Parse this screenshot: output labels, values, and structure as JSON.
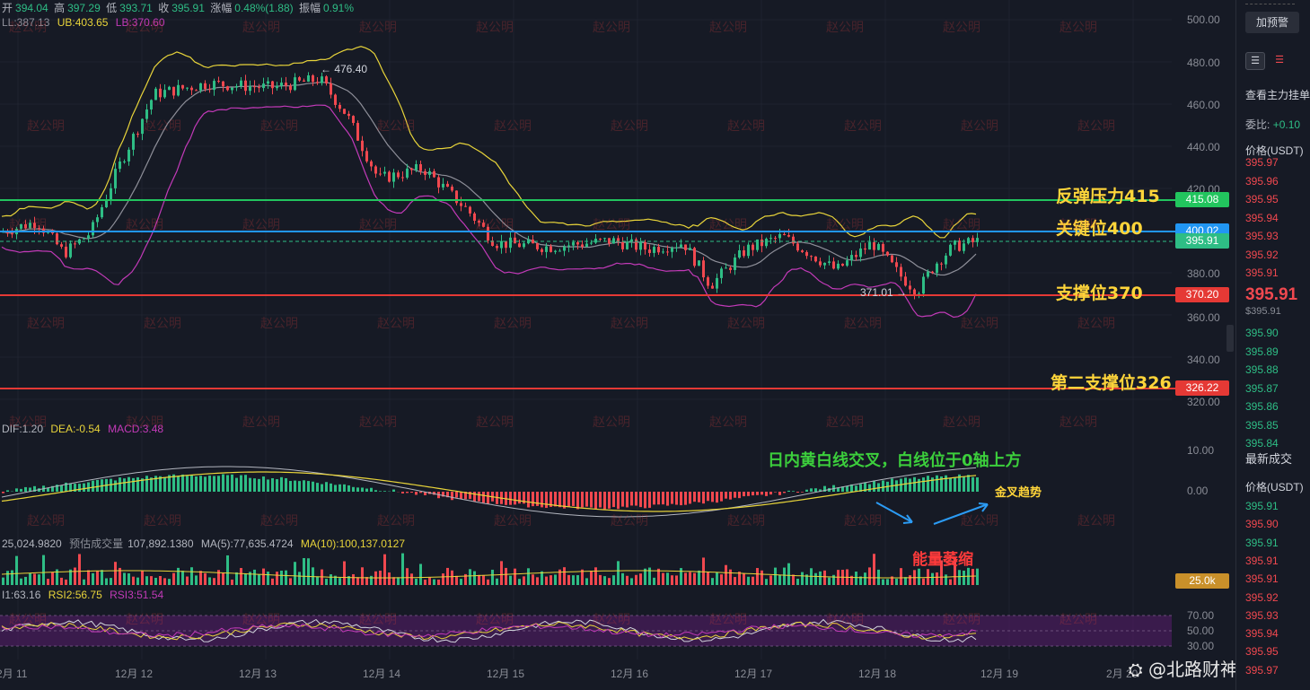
{
  "ohlc": {
    "open_label": "开",
    "open": "394.04",
    "high_label": "高",
    "high": "397.29",
    "low_label": "低",
    "low": "393.71",
    "close_label": "收",
    "close": "395.91",
    "change_label": "涨幅",
    "change": "0.48%(1.88)",
    "amplitude_label": "振幅",
    "amplitude": "0.91%"
  },
  "boll": {
    "ll": "LL:387.13",
    "ub": "UB:403.65",
    "lb": "LB:370.60"
  },
  "macd": {
    "dif": "DIF:1.20",
    "dea": "DEA:-0.54",
    "macd": "MACD:3.48"
  },
  "volume": {
    "vol": "25,024.9820",
    "predict_label": "预估成交量",
    "predict": "107,892.1380",
    "ma5": "MA(5):77,635.4724",
    "ma10": "MA(10):100,137.0127"
  },
  "rsi": {
    "rsi1": "I1:63.16",
    "rsi2": "RSI2:56.75",
    "rsi3": "RSI3:51.54"
  },
  "price_axis": [
    "500.00",
    "480.00",
    "460.00",
    "440.00",
    "420.00",
    "380.00",
    "360.00",
    "340.00",
    "320.00"
  ],
  "macd_axis": [
    "10.00",
    "0.00"
  ],
  "rsi_axis": [
    "70.00",
    "50.00",
    "30.00"
  ],
  "date_axis": [
    "2月 11",
    "12月 12",
    "12月 13",
    "12月 14",
    "12月 15",
    "12月 16",
    "12月 17",
    "12月 18",
    "12月 19",
    "2月 20"
  ],
  "price_tags": {
    "resistance": "415.08",
    "key": "400.02",
    "last": "395.91",
    "support": "370.20",
    "support2": "326.22",
    "vol": "25.0k"
  },
  "markers": {
    "high": "← 476.40",
    "low": "371.01 →"
  },
  "annotations": {
    "resistance": "反弹压力415",
    "key": "关键位400",
    "support": "支撑位370",
    "support2": "第二支撑位326",
    "macd_note": "日内黄白线交叉，白线位于0轴上方",
    "golden_cross": "金叉趋势",
    "volume_note": "能量萎缩"
  },
  "watermark_text": "赵公明",
  "footer": "@北路财神赵公明",
  "panel": {
    "alert_button": "加预警",
    "view_orders": "查看主力挂单",
    "ratio_label": "委比:",
    "ratio_value": "+0.10",
    "price_header": "价格(USDT)",
    "ask_prices": [
      "395.97",
      "395.96",
      "395.95",
      "395.94",
      "395.93",
      "395.92",
      "395.91"
    ],
    "last_price": "395.91",
    "last_price_sub": "$395.91",
    "bid_prices": [
      "395.90",
      "395.89",
      "395.88",
      "395.87",
      "395.86",
      "395.85",
      "395.84"
    ],
    "trades_title": "最新成交",
    "trades_header": "价格(USDT)",
    "trades": [
      {
        "p": "395.91",
        "s": "buy"
      },
      {
        "p": "395.90",
        "s": "sell"
      },
      {
        "p": "395.91",
        "s": "buy"
      },
      {
        "p": "395.91",
        "s": "sell"
      },
      {
        "p": "395.91",
        "s": "sell"
      },
      {
        "p": "395.92",
        "s": "sell"
      },
      {
        "p": "395.93",
        "s": "sell"
      },
      {
        "p": "395.94",
        "s": "sell"
      },
      {
        "p": "395.95",
        "s": "sell"
      },
      {
        "p": "395.97",
        "s": "sell"
      }
    ]
  },
  "colors": {
    "up": "#2ebd85",
    "down": "#f0484f",
    "resistance": "#22c55e",
    "key": "#2196f3",
    "support": "#e53935",
    "annot_yellow": "#ffd53a",
    "annot_green": "#3ccf3c",
    "annot_red": "#ff3b3b",
    "ub": "#e8d43a",
    "lb": "#c23ab8",
    "mid": "#8e8f99"
  }
}
